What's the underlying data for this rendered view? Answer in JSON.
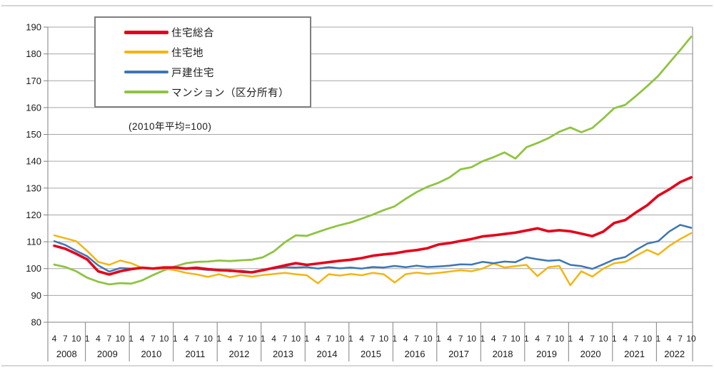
{
  "note": "(2010年平均=100)",
  "colors": {
    "grid": "#a6a6a6",
    "axis": "#808080",
    "frame": "#c9c9c9",
    "tick_text": "#1a1a1a",
    "legend_border": "#7f7f7f"
  },
  "chart_data": {
    "type": "line",
    "title": "",
    "xlabel": "",
    "ylabel": "",
    "note": "(2010年平均=100)",
    "y_axis": {
      "min": 80,
      "max": 190,
      "step": 10
    },
    "grid": true,
    "legend_position": "top-left",
    "x_axis": {
      "unit": "month (quarterly ticks)",
      "cells": [
        {
          "year": "2008",
          "months": [
            "4",
            "7",
            "10"
          ]
        },
        {
          "year": "2009",
          "months": [
            "1",
            "4",
            "7",
            "10"
          ]
        },
        {
          "year": "2010",
          "months": [
            "1",
            "4",
            "7",
            "10"
          ]
        },
        {
          "year": "2011",
          "months": [
            "1",
            "4",
            "7",
            "10"
          ]
        },
        {
          "year": "2012",
          "months": [
            "1",
            "4",
            "7",
            "10"
          ]
        },
        {
          "year": "2013",
          "months": [
            "1",
            "4",
            "7",
            "10"
          ]
        },
        {
          "year": "2014",
          "months": [
            "1",
            "4",
            "7",
            "10"
          ]
        },
        {
          "year": "2015",
          "months": [
            "1",
            "4",
            "7",
            "10"
          ]
        },
        {
          "year": "2016",
          "months": [
            "1",
            "4",
            "7",
            "10"
          ]
        },
        {
          "year": "2017",
          "months": [
            "1",
            "4",
            "7",
            "10"
          ]
        },
        {
          "year": "2018",
          "months": [
            "1",
            "4",
            "7",
            "10"
          ]
        },
        {
          "year": "2019",
          "months": [
            "1",
            "4",
            "7",
            "10"
          ]
        },
        {
          "year": "2020",
          "months": [
            "1",
            "4",
            "7",
            "10"
          ]
        },
        {
          "year": "2021",
          "months": [
            "1",
            "4",
            "7",
            "10"
          ]
        },
        {
          "year": "2022",
          "months": [
            "1",
            "4",
            "7",
            "10"
          ]
        }
      ]
    },
    "series": [
      {
        "id": "jutaku-sogo",
        "name": "住宅総合",
        "color": "#e60019",
        "width": 3.6,
        "values": [
          108.5,
          107.4,
          105.5,
          103.4,
          99.0,
          97.8,
          99.0,
          99.8,
          100.3,
          100.0,
          100.4,
          100.4,
          100.0,
          100.3,
          99.8,
          99.4,
          99.3,
          98.9,
          98.6,
          99.4,
          100.3,
          101.2,
          102.0,
          101.4,
          101.9,
          102.4,
          102.9,
          103.3,
          103.9,
          104.8,
          105.3,
          105.7,
          106.4,
          106.9,
          107.6,
          109.0,
          109.5,
          110.3,
          111.0,
          112.0,
          112.4,
          112.9,
          113.4,
          114.2,
          115.0,
          113.9,
          114.3,
          113.9,
          113.0,
          112.1,
          113.8,
          117.0,
          118.1,
          121.0,
          123.6,
          127.2,
          129.5,
          132.2,
          134.0
        ]
      },
      {
        "id": "jutakuchi",
        "name": "住宅地",
        "color": "#f3b510",
        "width": 2.5,
        "values": [
          112.4,
          111.3,
          110.2,
          106.6,
          102.5,
          101.4,
          103.0,
          102.0,
          100.3,
          99.9,
          100.0,
          99.4,
          98.4,
          97.8,
          96.9,
          97.9,
          96.8,
          97.6,
          97.0,
          97.6,
          98.0,
          98.4,
          97.9,
          97.5,
          94.5,
          97.9,
          97.4,
          98.0,
          97.5,
          98.4,
          97.9,
          94.8,
          97.9,
          98.5,
          98.0,
          98.4,
          98.9,
          99.4,
          99.0,
          100.0,
          101.9,
          100.4,
          100.9,
          101.4,
          97.2,
          100.5,
          101.0,
          93.8,
          99.0,
          97.0,
          100.0,
          102.0,
          102.5,
          104.8,
          107.0,
          105.2,
          108.4,
          111.0,
          113.2
        ]
      },
      {
        "id": "kodate-jutaku",
        "name": "戸建住宅",
        "color": "#3d76b4",
        "width": 2.5,
        "values": [
          110.2,
          108.8,
          106.6,
          104.6,
          101.2,
          98.9,
          100.2,
          100.0,
          100.4,
          100.0,
          100.3,
          100.4,
          100.0,
          99.9,
          99.5,
          99.6,
          99.0,
          99.2,
          98.7,
          99.6,
          100.0,
          100.5,
          100.4,
          100.6,
          100.0,
          100.5,
          100.1,
          100.4,
          100.0,
          100.6,
          100.4,
          101.0,
          100.5,
          101.1,
          100.6,
          100.8,
          101.1,
          101.6,
          101.5,
          102.5,
          102.0,
          102.6,
          102.4,
          104.2,
          103.5,
          102.9,
          103.2,
          101.4,
          100.9,
          99.9,
          101.6,
          103.4,
          104.3,
          107.0,
          109.3,
          110.2,
          113.8,
          116.3,
          115.2
        ]
      },
      {
        "id": "mansion",
        "name": "マンション（区分所有）",
        "color": "#8ec441",
        "width": 2.8,
        "values": [
          101.5,
          100.6,
          99.0,
          96.6,
          95.1,
          94.1,
          94.6,
          94.4,
          95.6,
          97.6,
          99.4,
          100.8,
          102.0,
          102.5,
          102.6,
          103.0,
          102.8,
          103.1,
          103.3,
          104.2,
          106.4,
          109.8,
          112.4,
          112.2,
          113.6,
          115.0,
          116.2,
          117.2,
          118.6,
          120.1,
          121.8,
          123.2,
          126.0,
          128.5,
          130.5,
          132.0,
          134.0,
          137.0,
          137.8,
          140.0,
          141.5,
          143.3,
          141.0,
          145.2,
          146.8,
          148.6,
          151.0,
          152.6,
          150.8,
          152.4,
          156.0,
          159.8,
          161.0,
          164.4,
          168.0,
          171.8,
          176.6,
          181.4,
          186.4
        ]
      }
    ]
  }
}
